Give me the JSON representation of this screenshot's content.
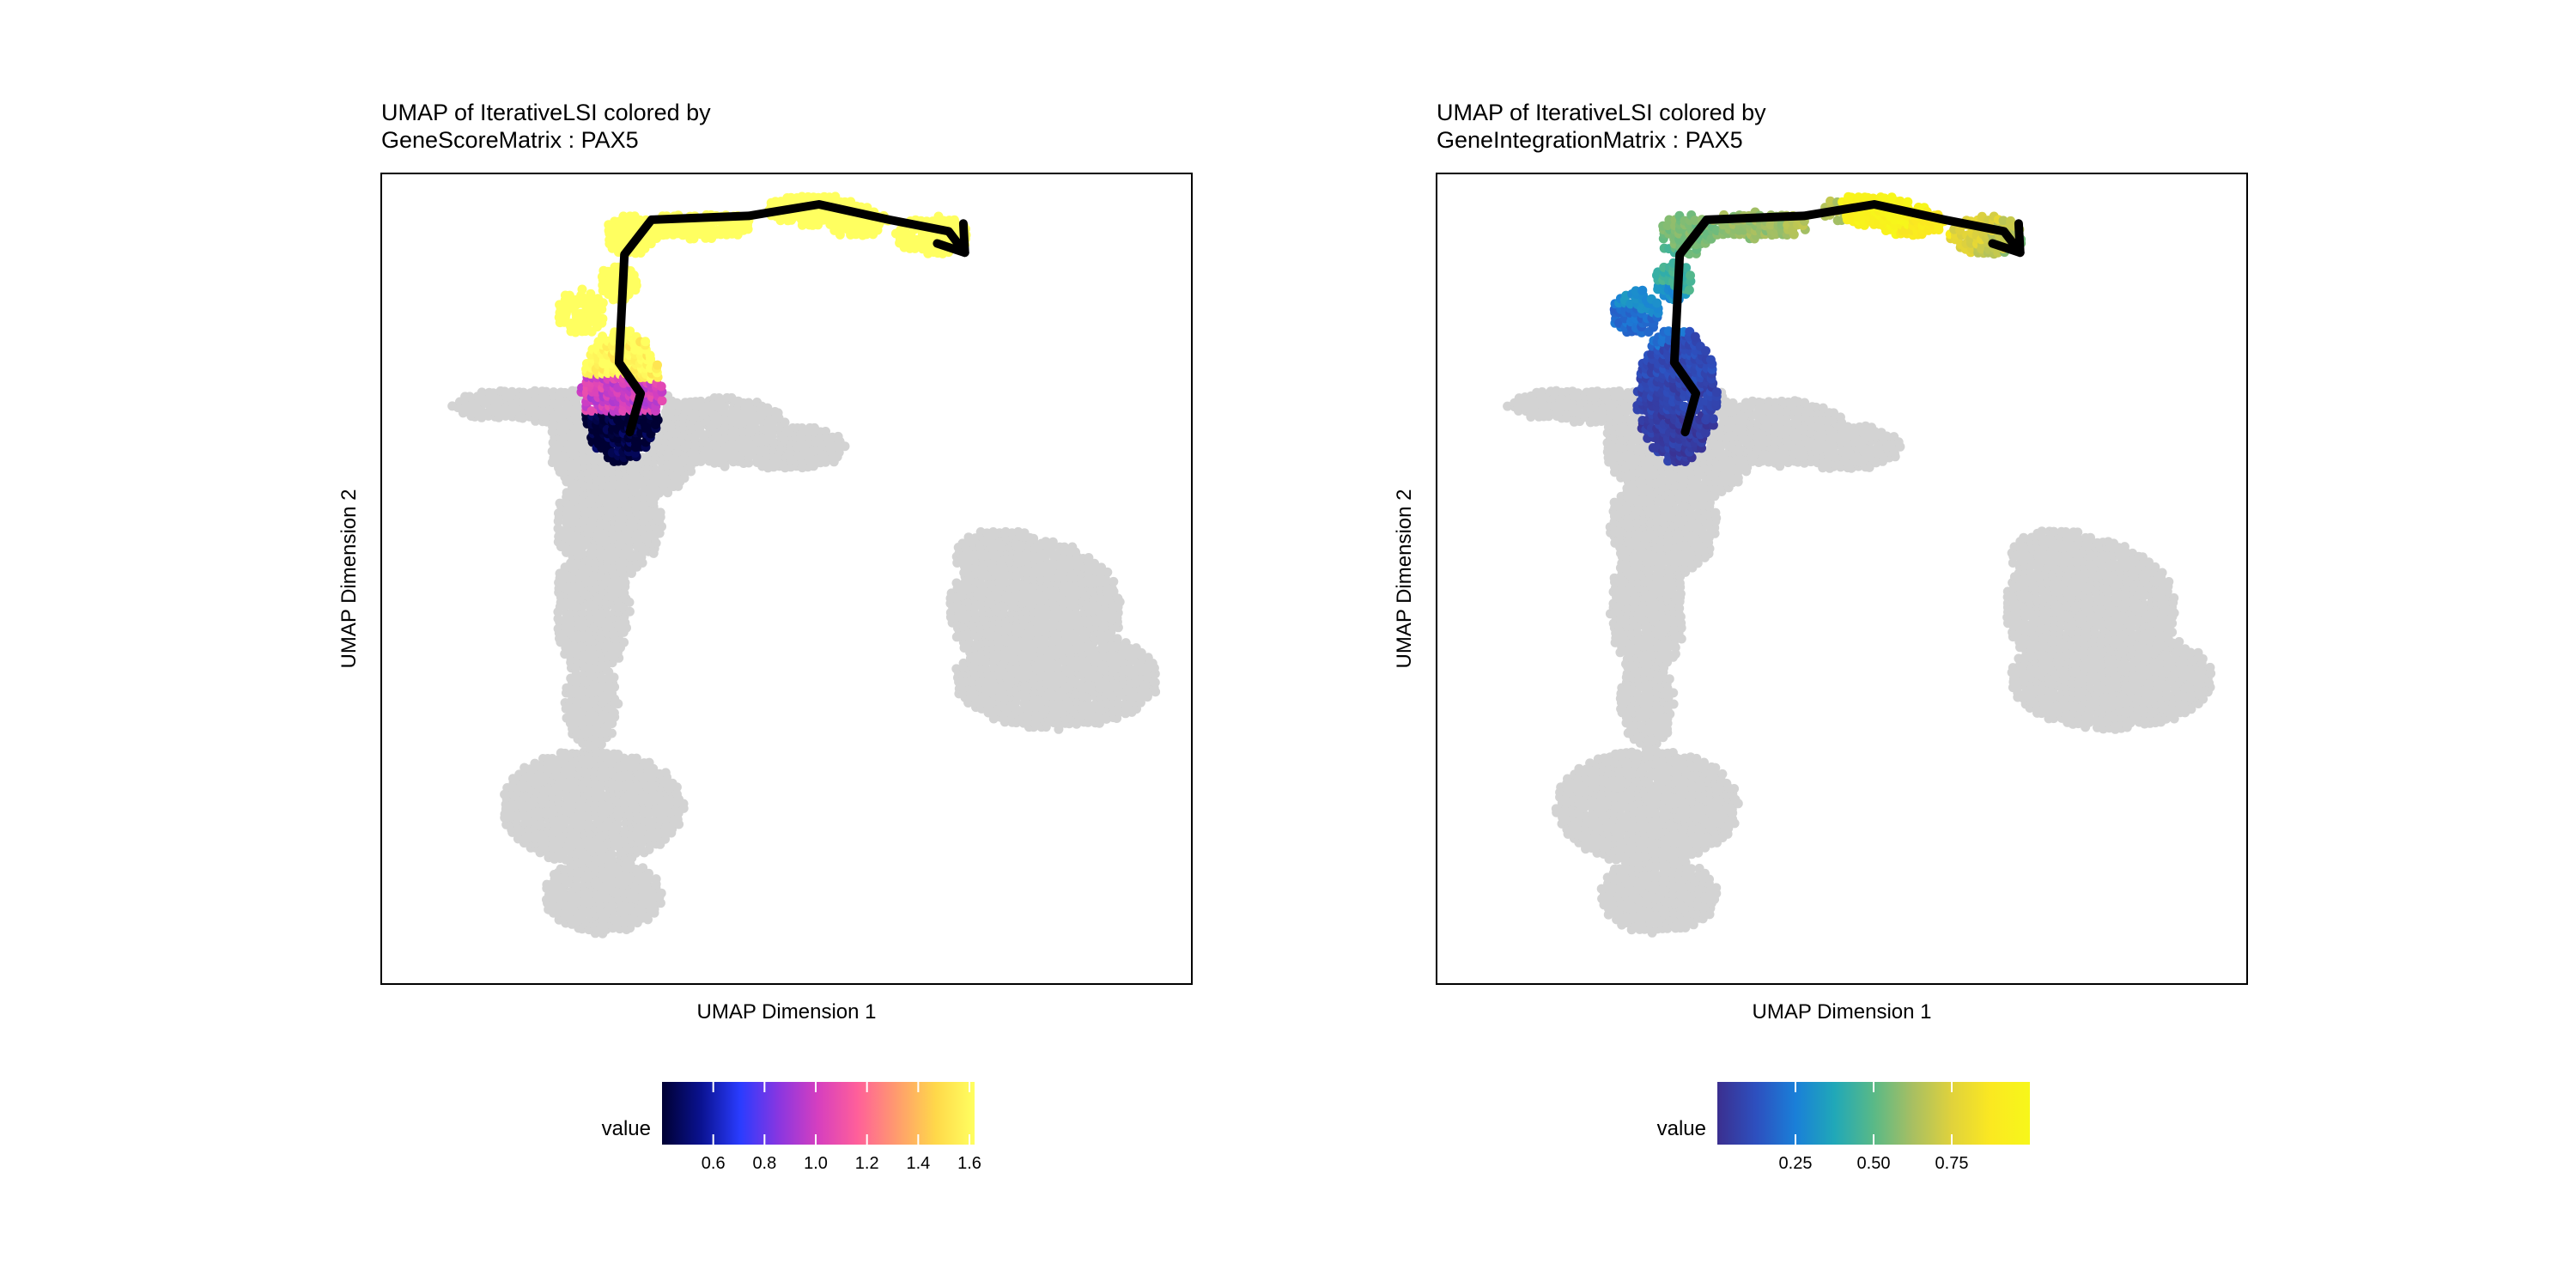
{
  "chart_data": [
    {
      "type": "scatter",
      "title": "UMAP of IterativeLSI colored by",
      "subtitle": "GeneScoreMatrix : PAX5",
      "xlabel": "UMAP Dimension 1",
      "ylabel": "UMAP Dimension 2",
      "axis_ticks": "none",
      "grid": false,
      "background_cells_color": "#d3d3d3",
      "trajectory_color": "#000000",
      "trajectory": [
        [
          -2.9,
          -0.2
        ],
        [
          -2.7,
          0.8
        ],
        [
          -3.1,
          1.6
        ],
        [
          -3.0,
          4.4
        ],
        [
          -2.5,
          5.3
        ],
        [
          -0.7,
          5.4
        ],
        [
          0.6,
          5.7
        ],
        [
          1.9,
          5.3
        ],
        [
          3.0,
          5.0
        ],
        [
          3.3,
          4.45
        ]
      ],
      "legend": {
        "title": "value",
        "position": "bottom",
        "palette": [
          "#000033",
          "#0a1290",
          "#2a3cff",
          "#8a36e0",
          "#d63fbf",
          "#ff5f9a",
          "#ff9b6e",
          "#ffd84a",
          "#ffff60"
        ],
        "min": 0.4,
        "max": 1.62,
        "ticks": [
          0.6,
          0.8,
          1.0,
          1.2,
          1.4,
          1.6
        ],
        "tick_labels": [
          "0.6",
          "0.8",
          "1.0",
          "1.2",
          "1.4",
          "1.6"
        ]
      },
      "highlight_profile": [
        [
          -3.4,
          0.4
        ],
        [
          -3.0,
          1.0
        ],
        [
          -2.6,
          1.6
        ],
        [
          -3.2,
          2.4
        ],
        [
          -3.4,
          3.2
        ],
        [
          -2.9,
          4.0
        ],
        [
          -2.4,
          4.7
        ],
        [
          -1.6,
          5.4
        ],
        [
          -0.4,
          5.4
        ],
        [
          0.6,
          5.5
        ],
        [
          1.2,
          5.5
        ],
        [
          1.5,
          5.1
        ],
        [
          2.5,
          5.2
        ],
        [
          3.0,
          4.7
        ],
        [
          3.2,
          4.4
        ]
      ]
    },
    {
      "type": "scatter",
      "title": "UMAP of IterativeLSI colored by",
      "subtitle": "GeneIntegrationMatrix : PAX5",
      "xlabel": "UMAP Dimension 1",
      "ylabel": "UMAP Dimension 2",
      "axis_ticks": "none",
      "grid": false,
      "background_cells_color": "#d3d3d3",
      "trajectory_color": "#000000",
      "trajectory": [
        [
          -2.9,
          -0.2
        ],
        [
          -2.7,
          0.8
        ],
        [
          -3.1,
          1.6
        ],
        [
          -3.0,
          4.4
        ],
        [
          -2.5,
          5.3
        ],
        [
          -0.7,
          5.4
        ],
        [
          0.6,
          5.7
        ],
        [
          1.9,
          5.3
        ],
        [
          3.0,
          5.0
        ],
        [
          3.3,
          4.45
        ]
      ],
      "legend": {
        "title": "value",
        "position": "bottom",
        "palette": [
          "#3b2f8f",
          "#2d50bf",
          "#1a7fd8",
          "#20a8b8",
          "#59b987",
          "#a8bf62",
          "#e0d23c",
          "#fbe821",
          "#f7f71a"
        ],
        "min": 0.0,
        "max": 1.0,
        "ticks": [
          0.25,
          0.5,
          0.75
        ],
        "tick_labels": [
          "0.25",
          "0.50",
          "0.75"
        ]
      },
      "highlight_profile": [
        [
          -3.4,
          0.05
        ],
        [
          -3.0,
          0.08
        ],
        [
          -2.6,
          0.1
        ],
        [
          -3.2,
          0.2
        ],
        [
          -3.4,
          0.3
        ],
        [
          -2.9,
          0.45
        ],
        [
          -2.4,
          0.55
        ],
        [
          -1.6,
          0.6
        ],
        [
          -0.4,
          0.65
        ],
        [
          0.6,
          0.95
        ],
        [
          1.2,
          0.98
        ],
        [
          1.5,
          0.9
        ],
        [
          2.5,
          0.75
        ],
        [
          3.0,
          0.68
        ],
        [
          3.2,
          0.55
        ]
      ]
    }
  ]
}
